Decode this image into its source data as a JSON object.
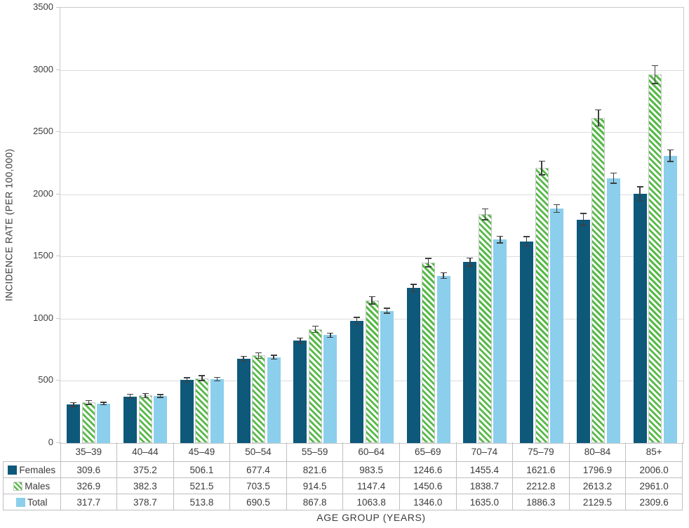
{
  "chart_data": {
    "type": "bar",
    "title": "",
    "xlabel": "AGE GROUP (YEARS)",
    "ylabel": "INCIDENCE RATE (PER 100,000)",
    "ylim": [
      0,
      3500
    ],
    "yticks": [
      0,
      500,
      1000,
      1500,
      2000,
      2500,
      3000,
      3500
    ],
    "grid": true,
    "error_bars": true,
    "legend_position": "table-left",
    "categories": [
      "35–39",
      "40–44",
      "45–49",
      "50–54",
      "55–59",
      "60–64",
      "65–69",
      "70–74",
      "75–79",
      "80–84",
      "85+"
    ],
    "series": [
      {
        "name": "Females",
        "key": "females",
        "color": "#0e587a",
        "pattern": "solid",
        "values": [
          309.6,
          375.2,
          506.1,
          677.4,
          821.6,
          983.5,
          1246.6,
          1455.4,
          1621.6,
          1796.9,
          2006.0
        ],
        "errors": [
          15,
          16,
          18,
          20,
          23,
          26,
          29,
          33,
          38,
          48,
          55
        ]
      },
      {
        "name": "Males",
        "key": "males",
        "color": "#57b948",
        "pattern": "diagonal-stripes",
        "background": "#ffffff",
        "values": [
          326.9,
          382.3,
          521.5,
          703.5,
          914.5,
          1147.4,
          1450.6,
          1838.7,
          2212.8,
          2613.2,
          2961.0
        ],
        "errors": [
          16,
          17,
          20,
          22,
          26,
          30,
          35,
          43,
          55,
          65,
          72
        ]
      },
      {
        "name": "Total",
        "key": "total",
        "color": "#8bcfec",
        "pattern": "solid",
        "values": [
          317.7,
          378.7,
          513.8,
          690.5,
          867.8,
          1063.8,
          1346.0,
          1635.0,
          1886.3,
          2129.5,
          2309.6
        ],
        "errors": [
          11,
          12,
          13,
          15,
          17,
          20,
          23,
          27,
          31,
          40,
          46
        ]
      }
    ]
  },
  "colors": {
    "gridline": "#dcdcdc",
    "plot_border": "#c9c9c9",
    "table_border": "#bfbfbf",
    "error_bar": "#3f3f3f",
    "text": "#3d3d3d",
    "stripe_border": "#c8c8c8"
  }
}
